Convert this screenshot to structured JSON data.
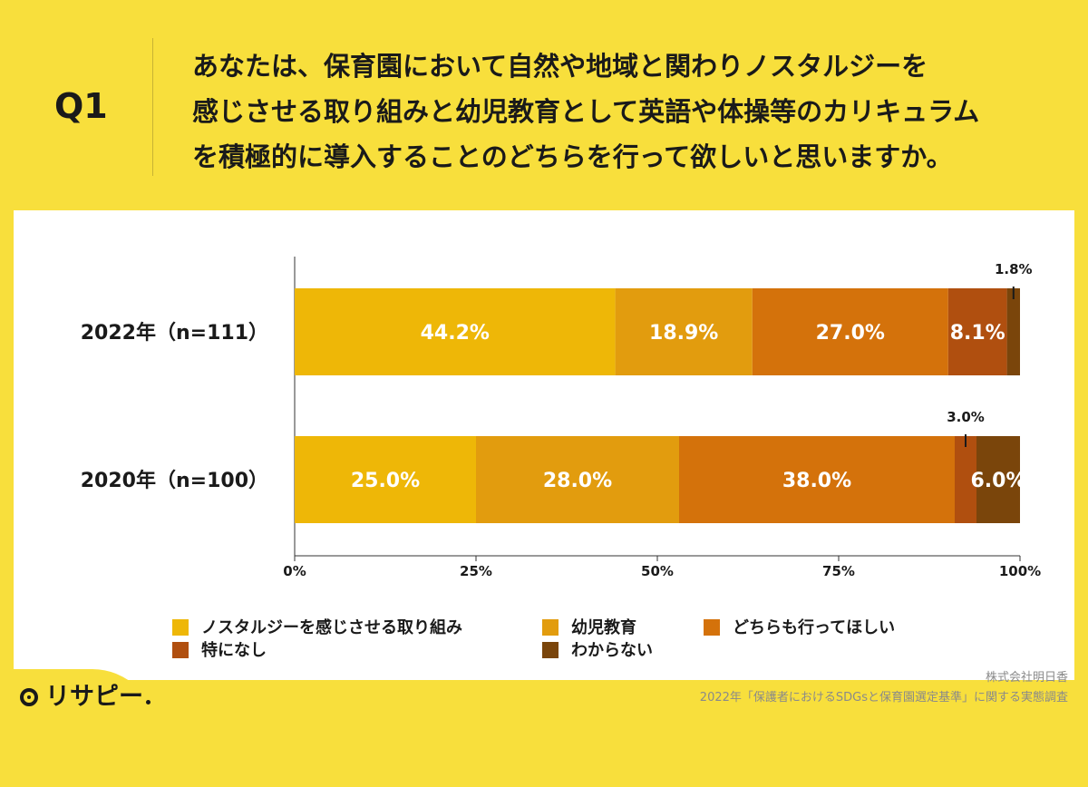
{
  "header": {
    "q_label": "Q1",
    "lines": [
      "あなたは、保育園において自然や地域と関わりノスタルジーを",
      "感じさせる取り組みと幼児教育として英語や体操等のカリキュラム",
      "を積極的に導入することのどちらを行って欲しいと思いますか。"
    ]
  },
  "chart_data": {
    "type": "bar",
    "orientation": "horizontal",
    "stacked": true,
    "categories": [
      "2022年（n=111）",
      "2020年（n=100）"
    ],
    "series": [
      {
        "name": "ノスタルジーを感じさせる取り組み",
        "color": "#eeb707",
        "values": [
          44.2,
          25.0
        ],
        "labels": [
          "44.2%",
          "25.0%"
        ]
      },
      {
        "name": "幼児教育",
        "color": "#e29c0e",
        "values": [
          18.9,
          28.0
        ],
        "labels": [
          "18.9%",
          "28.0%"
        ]
      },
      {
        "name": "どちらも行ってほしい",
        "color": "#d4720b",
        "values": [
          27.0,
          38.0
        ],
        "labels": [
          "27.0%",
          "38.0%"
        ]
      },
      {
        "name": "特になし",
        "color": "#b04f0f",
        "values": [
          8.1,
          3.0
        ],
        "labels": [
          "8.1%",
          "3.0%"
        ]
      },
      {
        "name": "わからない",
        "color": "#7a450b",
        "values": [
          1.8,
          6.0
        ],
        "labels": [
          "1.8%",
          "6.0%"
        ]
      }
    ],
    "xlim": [
      0,
      100
    ],
    "xticks": [
      "0%",
      "25%",
      "50%",
      "75%",
      "100%"
    ],
    "grid": false,
    "legend_position": "bottom"
  },
  "legend_rows": [
    [
      "ノスタルジーを感じさせる取り組み",
      "幼児教育",
      "どちらも行ってほしい"
    ],
    [
      "特になし",
      "わからない"
    ]
  ],
  "credit": {
    "company": "株式会社明日香",
    "survey": "2022年「保護者におけるSDGsと保育園選定基準」に関する実態調査"
  },
  "logo": {
    "text": "リサピー"
  }
}
